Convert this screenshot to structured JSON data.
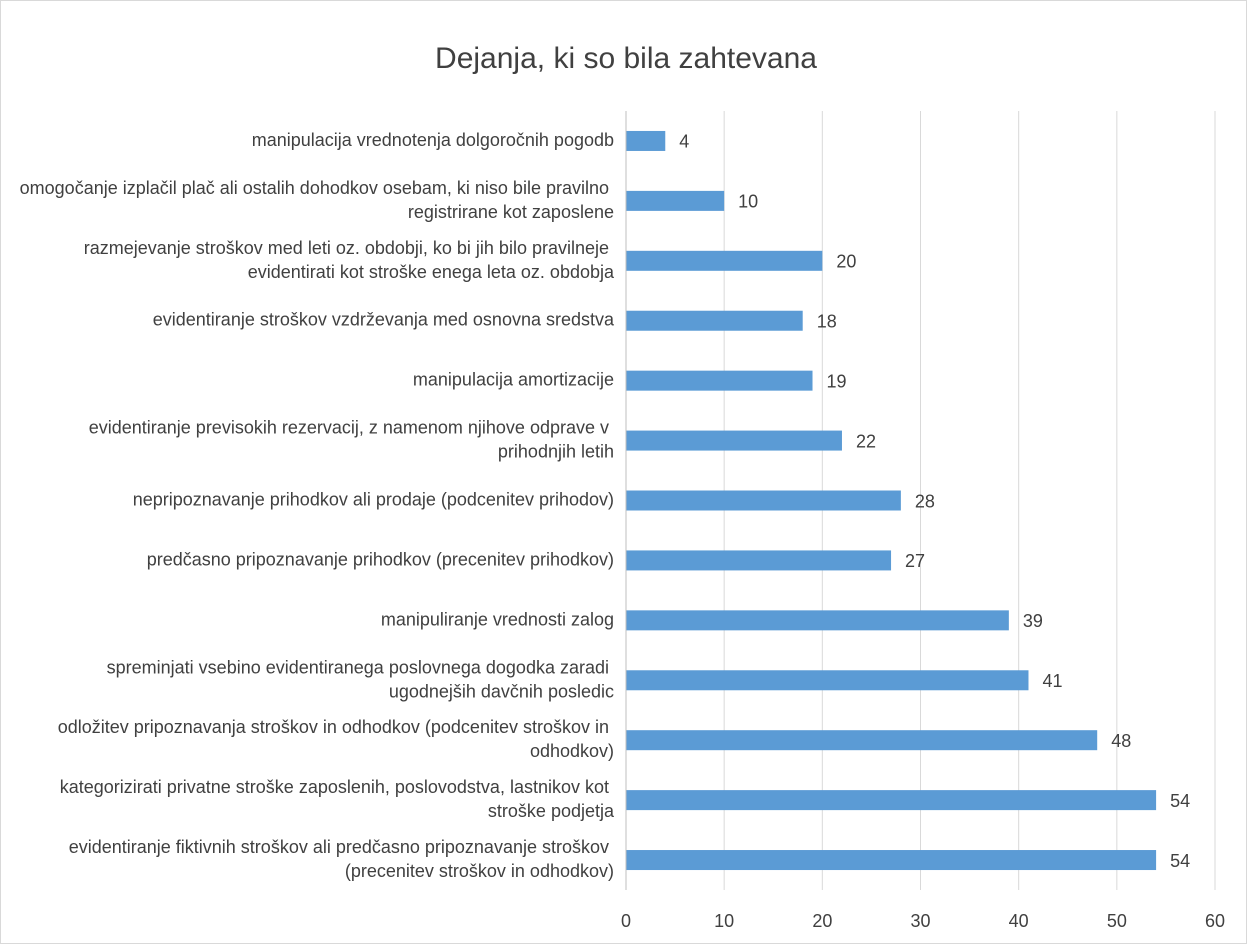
{
  "chart_data": {
    "type": "barh",
    "title": "Dejanja, ki so bila zahtevana",
    "categories": [
      "manipulacija vrednotenja dolgoročnih pogodb",
      "omogočanje izplačil plač ali ostalih dohodkov osebam, ki niso bile pravilno registrirane kot zaposlene",
      "razmejevanje stroškov med leti oz. obdobji, ko bi jih bilo pravilneje evidentirati kot stroške enega leta oz. obdobja",
      "evidentiranje stroškov vzdrževanja med osnovna sredstva",
      "manipulacija amortizacije",
      "evidentiranje previsokih rezervacij, z namenom njihove odprave v prihodnjih letih",
      "nepripoznavanje prihodkov ali prodaje (podcenitev prihodov)",
      "predčasno pripoznavanje prihodkov (precenitev prihodkov)",
      "manipuliranje vrednosti zalog",
      "spreminjati vsebino evidentiranega poslovnega dogodka zaradi ugodnejših davčnih posledic",
      "odložitev pripoznavanja stroškov in odhodkov (podcenitev stroškov in odhodkov)",
      "kategorizirati privatne stroške zaposlenih, poslovodstva, lastnikov kot stroške podjetja",
      "evidentiranje fiktivnih stroškov ali predčasno pripoznavanje stroškov (precenitev stroškov in odhodkov)"
    ],
    "values": [
      4,
      10,
      20,
      18,
      19,
      22,
      28,
      27,
      39,
      41,
      48,
      54,
      54
    ],
    "color": "#5b9bd5",
    "xlim": [
      0,
      60
    ],
    "xticks": [
      0,
      10,
      20,
      30,
      40,
      50,
      60
    ],
    "grid": true
  }
}
